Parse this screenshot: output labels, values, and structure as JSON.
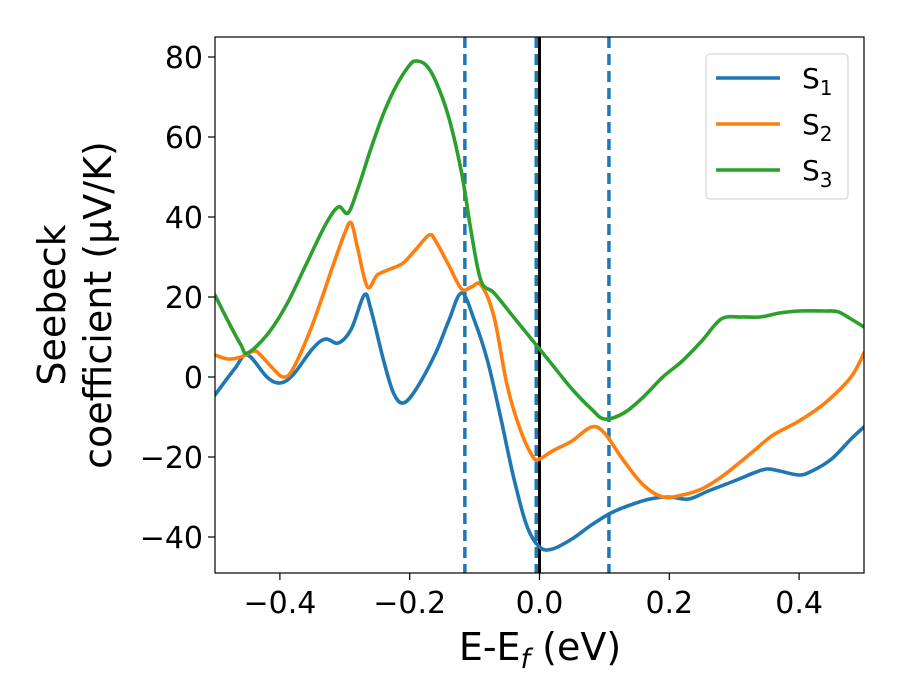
{
  "chart_data": {
    "type": "line",
    "xlabel": "E-E",
    "xlabel_sub": "f",
    "xlabel_unit": " (eV)",
    "ylabel_line1": "Seebeck",
    "ylabel_line2": "coefficient  (μV/K)",
    "xlim": [
      -0.5,
      0.5
    ],
    "ylim": [
      -49,
      85
    ],
    "x_ticks": [
      -0.4,
      -0.2,
      0.0,
      0.2,
      0.4
    ],
    "x_tick_labels": [
      "−0.4",
      "−0.2",
      "0.0",
      "0.2",
      "0.4"
    ],
    "y_ticks": [
      -40,
      -20,
      0,
      20,
      40,
      60,
      80
    ],
    "y_tick_labels": [
      "−40",
      "−20",
      "0",
      "20",
      "40",
      "60",
      "80"
    ],
    "grid": false,
    "legend_position": "top-right",
    "reference_lines": [
      {
        "x": -0.115,
        "style": "dashed",
        "color": "#1f77b4"
      },
      {
        "x": -0.005,
        "style": "dashed",
        "color": "#1f77b4"
      },
      {
        "x": 0.0,
        "style": "solid",
        "color": "#000000"
      },
      {
        "x": 0.107,
        "style": "dashed",
        "color": "#1f77b4"
      }
    ],
    "series": [
      {
        "name": "S",
        "sub": "1",
        "color": "#1f77b4",
        "points": [
          [
            -0.5,
            -4.5
          ],
          [
            -0.47,
            2
          ],
          [
            -0.45,
            5.5
          ],
          [
            -0.42,
            0
          ],
          [
            -0.4,
            -1.5
          ],
          [
            -0.38,
            0.5
          ],
          [
            -0.35,
            7
          ],
          [
            -0.33,
            9.5
          ],
          [
            -0.31,
            8.5
          ],
          [
            -0.29,
            12
          ],
          [
            -0.27,
            20.5
          ],
          [
            -0.26,
            17
          ],
          [
            -0.24,
            4
          ],
          [
            -0.225,
            -4
          ],
          [
            -0.21,
            -6.5
          ],
          [
            -0.19,
            -3
          ],
          [
            -0.16,
            6
          ],
          [
            -0.14,
            14
          ],
          [
            -0.12,
            21
          ],
          [
            -0.1,
            14
          ],
          [
            -0.08,
            4
          ],
          [
            -0.06,
            -10
          ],
          [
            -0.04,
            -25
          ],
          [
            -0.02,
            -37
          ],
          [
            0.0,
            -42.5
          ],
          [
            0.02,
            -43
          ],
          [
            0.05,
            -40.5
          ],
          [
            0.08,
            -37
          ],
          [
            0.11,
            -34
          ],
          [
            0.14,
            -32
          ],
          [
            0.17,
            -30.5
          ],
          [
            0.2,
            -30
          ],
          [
            0.23,
            -30.5
          ],
          [
            0.26,
            -28.5
          ],
          [
            0.3,
            -26
          ],
          [
            0.33,
            -24
          ],
          [
            0.35,
            -23
          ],
          [
            0.37,
            -23.5
          ],
          [
            0.4,
            -24.5
          ],
          [
            0.42,
            -23.5
          ],
          [
            0.45,
            -20.5
          ],
          [
            0.48,
            -15.5
          ],
          [
            0.5,
            -12.5
          ]
        ]
      },
      {
        "name": "S",
        "sub": "2",
        "color": "#ff7f0e",
        "points": [
          [
            -0.5,
            5.5
          ],
          [
            -0.48,
            4.5
          ],
          [
            -0.46,
            5
          ],
          [
            -0.44,
            6.5
          ],
          [
            -0.43,
            5.5
          ],
          [
            -0.41,
            2
          ],
          [
            -0.395,
            0
          ],
          [
            -0.38,
            2
          ],
          [
            -0.35,
            13
          ],
          [
            -0.32,
            27
          ],
          [
            -0.3,
            36
          ],
          [
            -0.29,
            38.5
          ],
          [
            -0.28,
            32
          ],
          [
            -0.265,
            22.5
          ],
          [
            -0.25,
            25.5
          ],
          [
            -0.23,
            27
          ],
          [
            -0.21,
            28.5
          ],
          [
            -0.19,
            32
          ],
          [
            -0.17,
            35.5
          ],
          [
            -0.16,
            34
          ],
          [
            -0.14,
            28
          ],
          [
            -0.12,
            22
          ],
          [
            -0.105,
            22.5
          ],
          [
            -0.09,
            23
          ],
          [
            -0.07,
            15
          ],
          [
            -0.05,
            -2
          ],
          [
            -0.03,
            -13
          ],
          [
            -0.01,
            -20
          ],
          [
            0.0,
            -20.5
          ],
          [
            0.02,
            -18.5
          ],
          [
            0.05,
            -16
          ],
          [
            0.08,
            -12.5
          ],
          [
            0.1,
            -14
          ],
          [
            0.13,
            -21
          ],
          [
            0.16,
            -27
          ],
          [
            0.19,
            -30
          ],
          [
            0.22,
            -29.5
          ],
          [
            0.25,
            -28
          ],
          [
            0.28,
            -25
          ],
          [
            0.3,
            -22.5
          ],
          [
            0.33,
            -18.5
          ],
          [
            0.36,
            -14.5
          ],
          [
            0.4,
            -11
          ],
          [
            0.44,
            -6.5
          ],
          [
            0.48,
            0
          ],
          [
            0.5,
            6
          ]
        ]
      },
      {
        "name": "S",
        "sub": "3",
        "color": "#2ca02c",
        "points": [
          [
            -0.5,
            20.5
          ],
          [
            -0.48,
            14
          ],
          [
            -0.46,
            8
          ],
          [
            -0.45,
            6
          ],
          [
            -0.42,
            10.5
          ],
          [
            -0.39,
            18
          ],
          [
            -0.36,
            28
          ],
          [
            -0.33,
            38
          ],
          [
            -0.31,
            42.5
          ],
          [
            -0.295,
            41
          ],
          [
            -0.28,
            47
          ],
          [
            -0.26,
            57
          ],
          [
            -0.24,
            66
          ],
          [
            -0.22,
            73
          ],
          [
            -0.2,
            78
          ],
          [
            -0.19,
            79
          ],
          [
            -0.175,
            78
          ],
          [
            -0.16,
            74
          ],
          [
            -0.14,
            65
          ],
          [
            -0.12,
            51
          ],
          [
            -0.105,
            36
          ],
          [
            -0.09,
            24
          ],
          [
            -0.07,
            21
          ],
          [
            -0.04,
            15
          ],
          [
            -0.01,
            9
          ],
          [
            0.0,
            7
          ],
          [
            0.02,
            3
          ],
          [
            0.05,
            -3
          ],
          [
            0.08,
            -8
          ],
          [
            0.1,
            -10.5
          ],
          [
            0.13,
            -9
          ],
          [
            0.16,
            -5
          ],
          [
            0.19,
            0
          ],
          [
            0.22,
            4
          ],
          [
            0.25,
            9
          ],
          [
            0.28,
            14.5
          ],
          [
            0.31,
            15
          ],
          [
            0.34,
            15
          ],
          [
            0.37,
            16
          ],
          [
            0.4,
            16.5
          ],
          [
            0.44,
            16.5
          ],
          [
            0.46,
            16.3
          ],
          [
            0.48,
            14.5
          ],
          [
            0.5,
            12.5
          ]
        ]
      }
    ]
  }
}
